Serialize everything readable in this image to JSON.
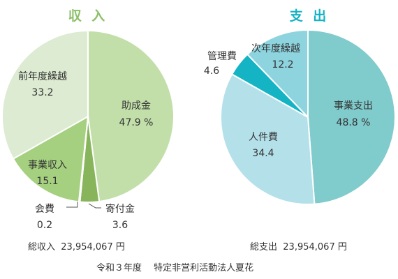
{
  "chart_data": [
    {
      "type": "pie",
      "title": "収 入",
      "title_color": "#8cc06a",
      "slices": [
        {
          "name": "助成金",
          "value": 47.9,
          "value_label": "47.9 %",
          "color": "#c2dfa9"
        },
        {
          "name": "寄付金",
          "value": 3.6,
          "value_label": "3.6",
          "color": "#88b55c"
        },
        {
          "name": "会費",
          "value": 0.2,
          "value_label": "0.2",
          "color": "#6e9e44"
        },
        {
          "name": "事業収入",
          "value": 15.1,
          "value_label": "15.1",
          "color": "#a5d07f"
        },
        {
          "name": "前年度繰越",
          "value": 33.2,
          "value_label": "33.2",
          "color": "#dcebd1"
        }
      ],
      "total_label": "総収入",
      "total_value": "23,954,067 円"
    },
    {
      "type": "pie",
      "title": "支 出",
      "title_color": "#13b3c4",
      "slices": [
        {
          "name": "事業支出",
          "value": 48.8,
          "value_label": "48.8 %",
          "color": "#80cbcc"
        },
        {
          "name": "人件費",
          "value": 34.4,
          "value_label": "34.4",
          "color": "#b4e0ea"
        },
        {
          "name": "管理費",
          "value": 4.6,
          "value_label": "4.6",
          "color": "#14b4c4"
        },
        {
          "name": "次年度繰越",
          "value": 12.2,
          "value_label": "12.2",
          "color": "#8dd4df"
        }
      ],
      "total_label": "総支出",
      "total_value": "23,954,067 円"
    }
  ],
  "footer": "令和３年度　 特定非営利活動法人夏花"
}
